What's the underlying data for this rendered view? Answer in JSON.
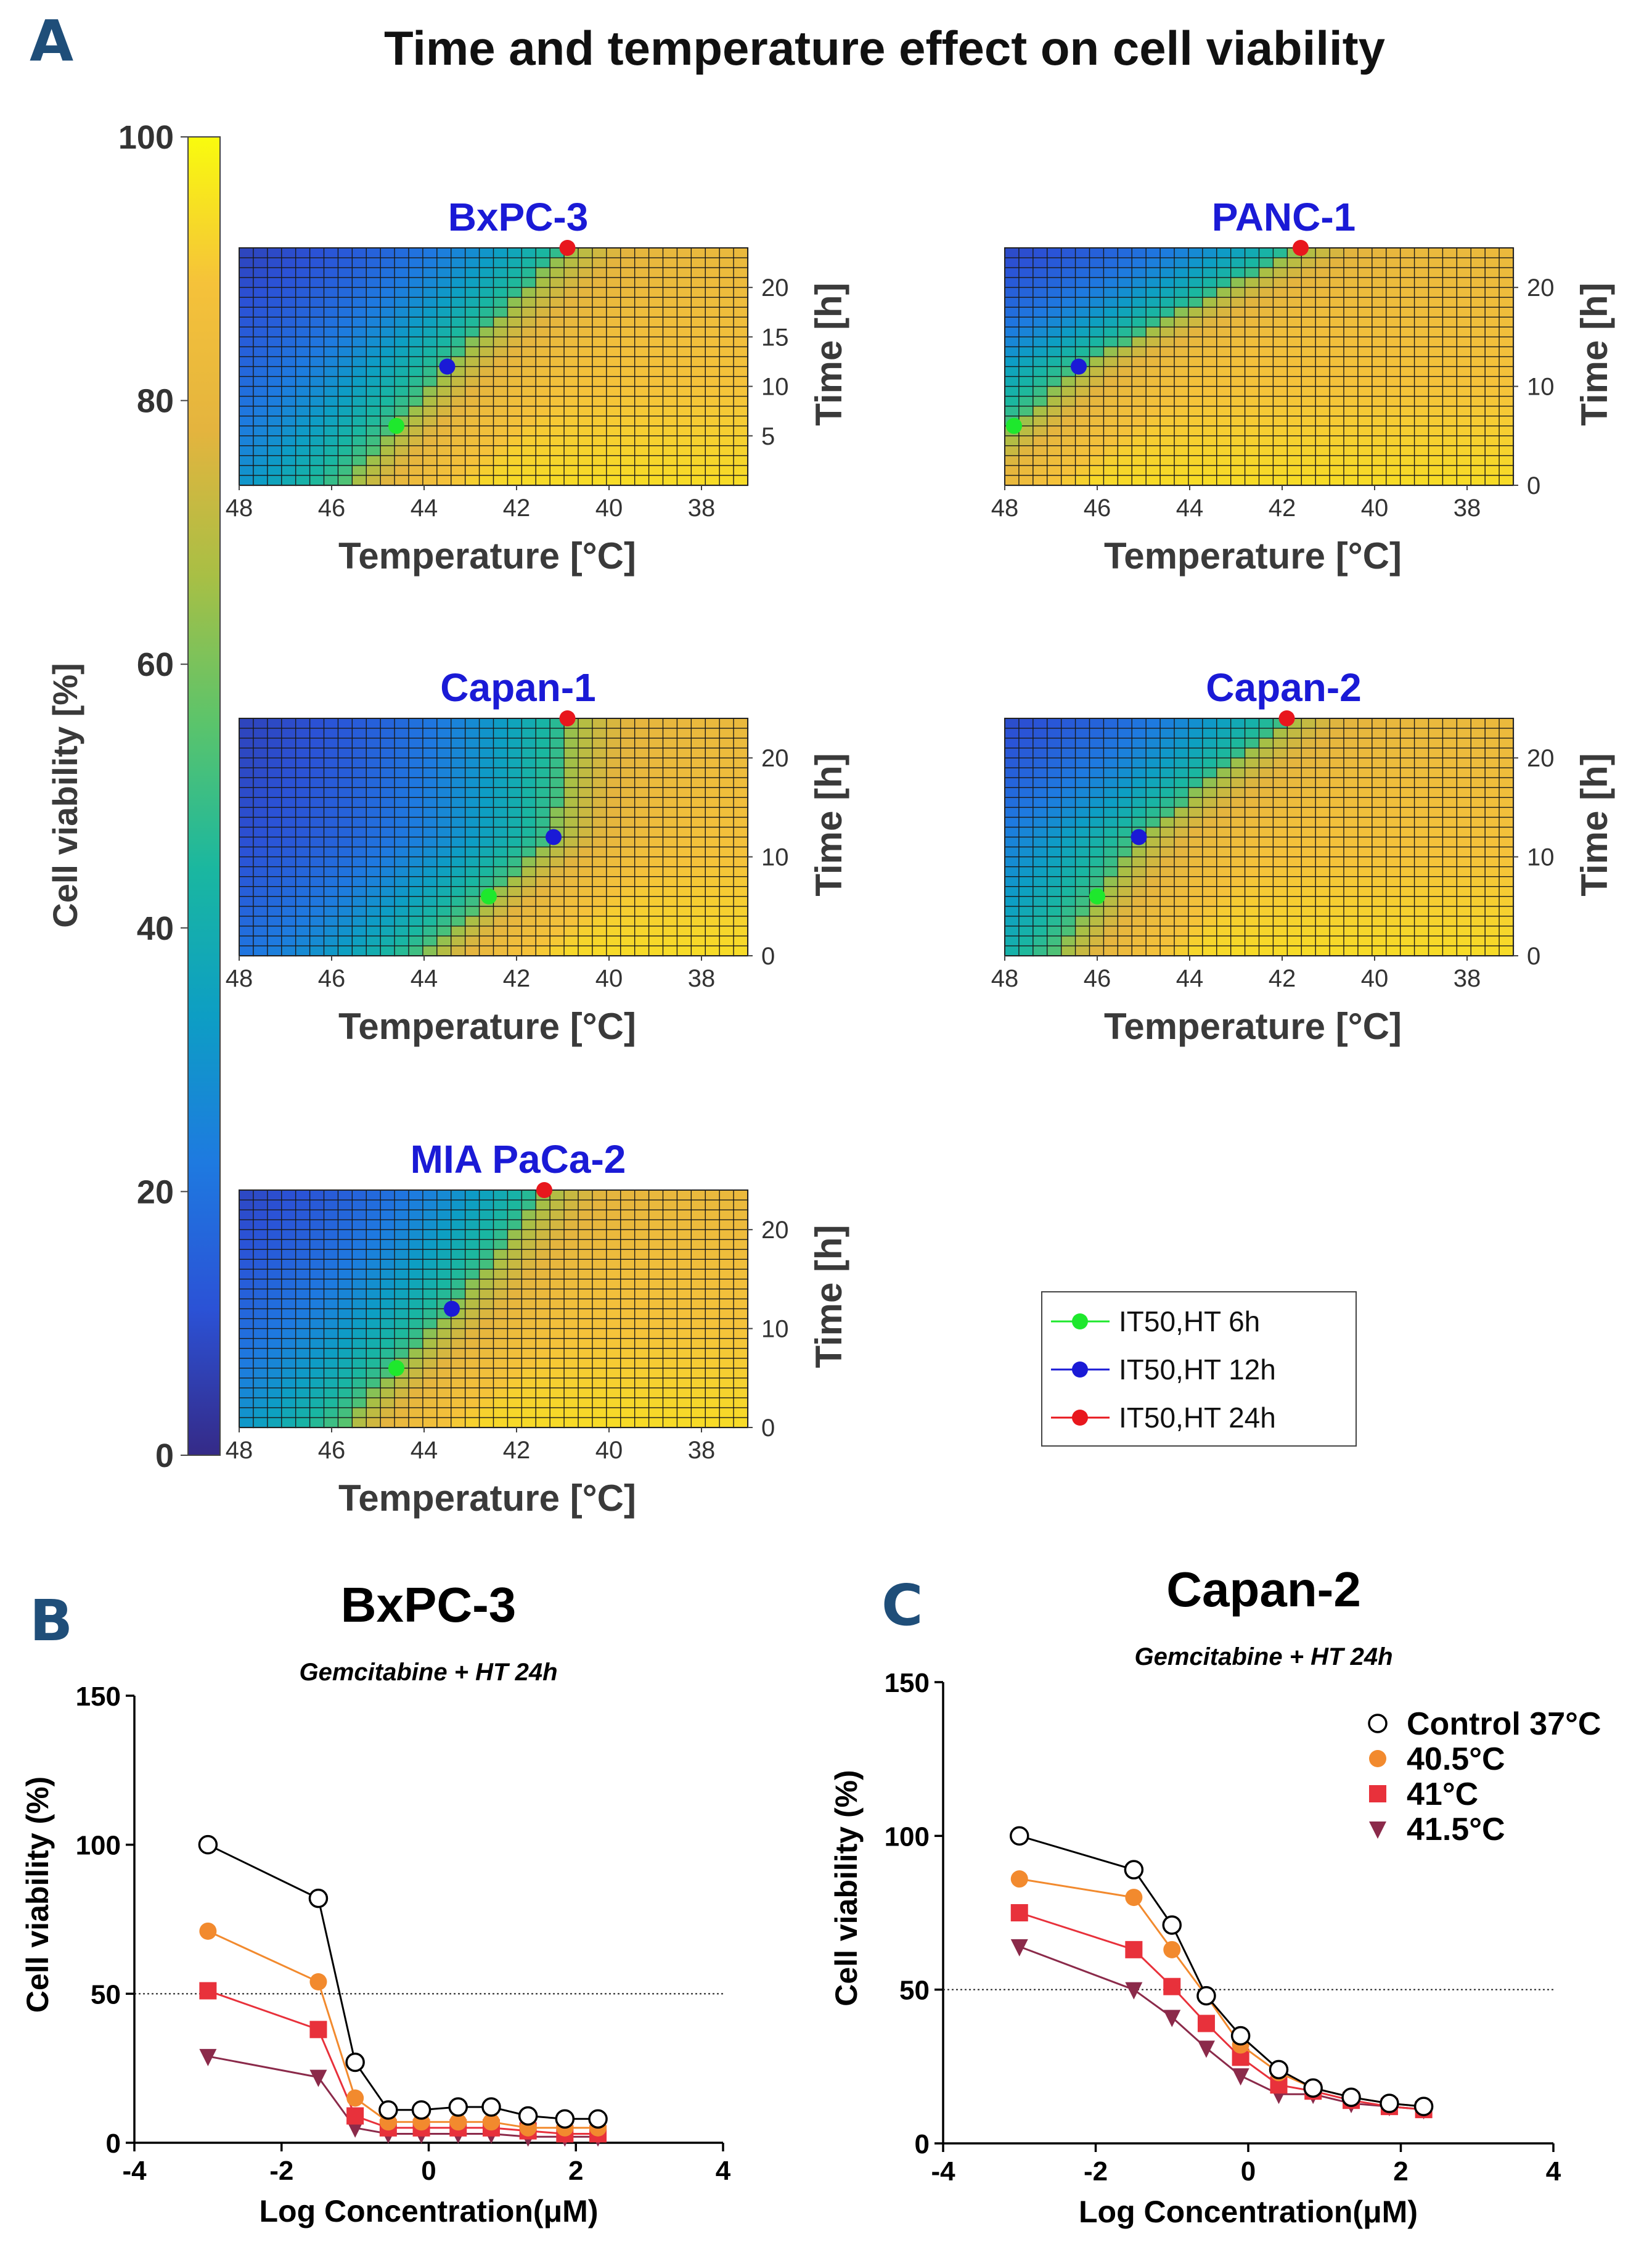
{
  "figure": {
    "panel_letters": [
      "A",
      "B",
      "C"
    ],
    "title": "Time and temperature effect on cell viability"
  },
  "colormap": {
    "name": "parula",
    "stops": [
      "#352a87",
      "#2b52d6",
      "#1e7ae0",
      "#0d9ec4",
      "#1ab7a0",
      "#5bc46b",
      "#a8bf45",
      "#e4b43e",
      "#f5c23a",
      "#f9fb0e"
    ]
  },
  "colorbar": {
    "label": "Cell viability [%]",
    "min": 0,
    "max": 100,
    "ticks": [
      "0",
      "20",
      "40",
      "60",
      "80",
      "100"
    ]
  },
  "chart_data": [
    {
      "type": "heatmap",
      "title": "BxPC-3",
      "xlabel": "Temperature [°C]",
      "ylabel": "Time [h]",
      "xlim": [
        48,
        37
      ],
      "ylim": [
        0,
        24
      ],
      "xticks": [
        "48",
        "46",
        "44",
        "42",
        "40",
        "38"
      ],
      "yticks": [
        "5",
        "10",
        "15",
        "20"
      ],
      "grid_cols": 36,
      "grid_rows": 24,
      "viability_model": "50% isocontour passes through the three IT50 points; cooler and shorter = higher viability",
      "it50_points": [
        {
          "time_h": 6,
          "temperature_c": 44.6
        },
        {
          "time_h": 12,
          "temperature_c": 43.5
        },
        {
          "time_h": 24,
          "temperature_c": 40.9
        }
      ]
    },
    {
      "type": "heatmap",
      "title": "PANC-1",
      "xlabel": "Temperature [°C]",
      "ylabel": "Time [h]",
      "xlim": [
        48,
        37
      ],
      "ylim": [
        0,
        24
      ],
      "xticks": [
        "48",
        "46",
        "44",
        "42",
        "40",
        "38"
      ],
      "yticks": [
        "0",
        "10",
        "20"
      ],
      "grid_cols": 36,
      "grid_rows": 24,
      "viability_model": "50% isocontour passes through the three IT50 points; cooler and shorter = higher viability",
      "it50_points": [
        {
          "time_h": 6,
          "temperature_c": 47.8
        },
        {
          "time_h": 12,
          "temperature_c": 46.4
        },
        {
          "time_h": 24,
          "temperature_c": 41.6
        }
      ]
    },
    {
      "type": "heatmap",
      "title": "Capan-1",
      "xlabel": "Temperature [°C]",
      "ylabel": "Time [h]",
      "xlim": [
        48,
        37
      ],
      "ylim": [
        0,
        24
      ],
      "xticks": [
        "48",
        "46",
        "44",
        "42",
        "40",
        "38"
      ],
      "yticks": [
        "0",
        "10",
        "20"
      ],
      "grid_cols": 36,
      "grid_rows": 24,
      "viability_model": "50% isocontour passes through the three IT50 points; cooler and shorter = higher viability",
      "it50_points": [
        {
          "time_h": 6,
          "temperature_c": 42.6
        },
        {
          "time_h": 12,
          "temperature_c": 41.2
        },
        {
          "time_h": 24,
          "temperature_c": 40.9
        }
      ]
    },
    {
      "type": "heatmap",
      "title": "Capan-2",
      "xlabel": "Temperature [°C]",
      "ylabel": "Time [h]",
      "xlim": [
        48,
        37
      ],
      "ylim": [
        0,
        24
      ],
      "xticks": [
        "48",
        "46",
        "44",
        "42",
        "40",
        "38"
      ],
      "yticks": [
        "0",
        "10",
        "20"
      ],
      "grid_cols": 36,
      "grid_rows": 24,
      "viability_model": "50% isocontour passes through the three IT50 points; cooler and shorter = higher viability",
      "it50_points": [
        {
          "time_h": 6,
          "temperature_c": 46.0
        },
        {
          "time_h": 12,
          "temperature_c": 45.1
        },
        {
          "time_h": 24,
          "temperature_c": 41.9
        }
      ]
    },
    {
      "type": "heatmap",
      "title": "MIA PaCa-2",
      "xlabel": "Temperature [°C]",
      "ylabel": "Time [h]",
      "xlim": [
        48,
        37
      ],
      "ylim": [
        0,
        24
      ],
      "xticks": [
        "48",
        "46",
        "44",
        "42",
        "40",
        "38"
      ],
      "yticks": [
        "0",
        "10",
        "20"
      ],
      "grid_cols": 36,
      "grid_rows": 24,
      "viability_model": "50% isocontour passes through the three IT50 points; cooler and shorter = higher viability",
      "it50_points": [
        {
          "time_h": 6,
          "temperature_c": 44.6
        },
        {
          "time_h": 12,
          "temperature_c": 43.4
        },
        {
          "time_h": 24,
          "temperature_c": 41.4
        }
      ]
    },
    {
      "type": "line",
      "title": "BxPC-3",
      "subtitle": "Gemcitabine + HT 24h",
      "xlabel": "Log Concentration(μM)",
      "ylabel": "Cell viability (%)",
      "xlim": [
        -4,
        4
      ],
      "ylim": [
        0,
        150
      ],
      "xticks": [
        "-4",
        "-2",
        "0",
        "2",
        "4"
      ],
      "yticks": [
        "0",
        "50",
        "100",
        "150"
      ],
      "reference_line": 50,
      "x": [
        -3.0,
        -1.5,
        -1.0,
        -0.55,
        -0.1,
        0.4,
        0.85,
        1.35,
        1.85,
        2.3
      ],
      "series": [
        {
          "name": "Control 37°C",
          "color": "#000000",
          "marker": "open-circle",
          "values": [
            100,
            82,
            27,
            11,
            11,
            12,
            12,
            9,
            8,
            8
          ]
        },
        {
          "name": "40.5°C",
          "color": "#f28a2e",
          "marker": "circle",
          "values": [
            71,
            54,
            15,
            7,
            7,
            7,
            7,
            5,
            5,
            5
          ]
        },
        {
          "name": "41°C",
          "color": "#e8313b",
          "marker": "square",
          "values": [
            51,
            38,
            9,
            5,
            5,
            5,
            5,
            4,
            3,
            3
          ]
        },
        {
          "name": "41.5°C",
          "color": "#8b2a4a",
          "marker": "triangle-down",
          "values": [
            29,
            22,
            5,
            3,
            3,
            3,
            3,
            2,
            2,
            2
          ]
        }
      ]
    },
    {
      "type": "line",
      "title": "Capan-2",
      "subtitle": "Gemcitabine + HT 24h",
      "xlabel": "Log Concentration(μM)",
      "ylabel": "Cell viability (%)",
      "xlim": [
        -4,
        4
      ],
      "ylim": [
        0,
        150
      ],
      "xticks": [
        "-4",
        "-2",
        "0",
        "2",
        "4"
      ],
      "yticks": [
        "0",
        "50",
        "100",
        "150"
      ],
      "reference_line": 50,
      "legend_position": "top-right",
      "x": [
        -3.0,
        -1.5,
        -1.0,
        -0.55,
        -0.1,
        0.4,
        0.85,
        1.35,
        1.85,
        2.3
      ],
      "series": [
        {
          "name": "Control 37°C",
          "color": "#000000",
          "marker": "open-circle",
          "values": [
            100,
            89,
            71,
            48,
            35,
            24,
            18,
            15,
            13,
            12
          ]
        },
        {
          "name": "40.5°C",
          "color": "#f28a2e",
          "marker": "circle",
          "values": [
            86,
            80,
            63,
            48,
            32,
            23,
            18,
            15,
            13,
            12
          ]
        },
        {
          "name": "41°C",
          "color": "#e8313b",
          "marker": "square",
          "values": [
            75,
            63,
            51,
            39,
            28,
            19,
            17,
            14,
            12,
            11
          ]
        },
        {
          "name": "41.5°C",
          "color": "#8b2a4a",
          "marker": "triangle-down",
          "values": [
            64,
            50,
            41,
            31,
            22,
            16,
            16,
            13,
            12,
            11
          ]
        }
      ]
    }
  ],
  "legend": {
    "items": [
      {
        "label": "IT50,HT 6h",
        "color": "#1ee82d"
      },
      {
        "label": "IT50,HT 12h",
        "color": "#1a1ad6"
      },
      {
        "label": "IT50,HT 24h",
        "color": "#e8171d"
      }
    ]
  }
}
